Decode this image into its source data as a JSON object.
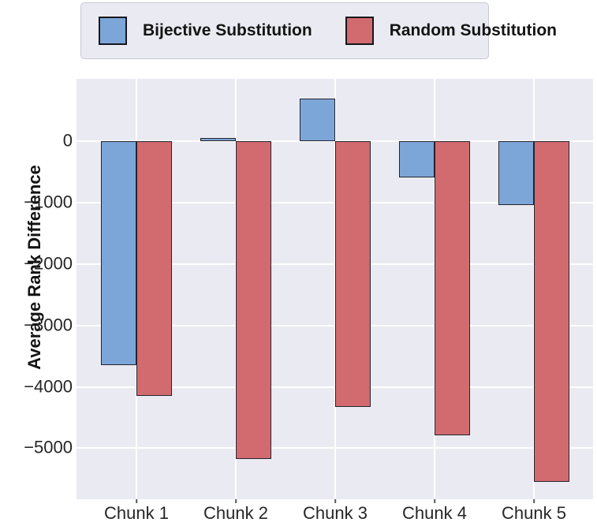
{
  "chart_data": {
    "type": "bar",
    "title": "",
    "xlabel": "",
    "ylabel": "Average Rank Difference",
    "categories": [
      "Chunk 1",
      "Chunk 2",
      "Chunk 3",
      "Chunk 4",
      "Chunk 5"
    ],
    "series": [
      {
        "name": "Bijective Substitution",
        "color": "#7ca6d8",
        "values": [
          -3650,
          50,
          700,
          -590,
          -1030
        ]
      },
      {
        "name": "Random Substitution",
        "color": "#d26b6f",
        "values": [
          -4150,
          -5180,
          -4330,
          -4790,
          -5550
        ]
      }
    ],
    "yticks": [
      0,
      -1000,
      -2000,
      -3000,
      -4000,
      -5000
    ],
    "ytick_labels": [
      "0",
      "−1000",
      "−2000",
      "−3000",
      "−4000",
      "−5000"
    ],
    "ylim": [
      -5830,
      1020
    ],
    "grid": true,
    "legend_position": "top",
    "colors": {
      "plot_background": "#eaeaf2",
      "gridline": "#ffffff",
      "bar_edge": "#24242e",
      "legend_background": "#eaeaf2",
      "legend_border": "#c9c9d4",
      "tick_text": "#262626"
    }
  }
}
